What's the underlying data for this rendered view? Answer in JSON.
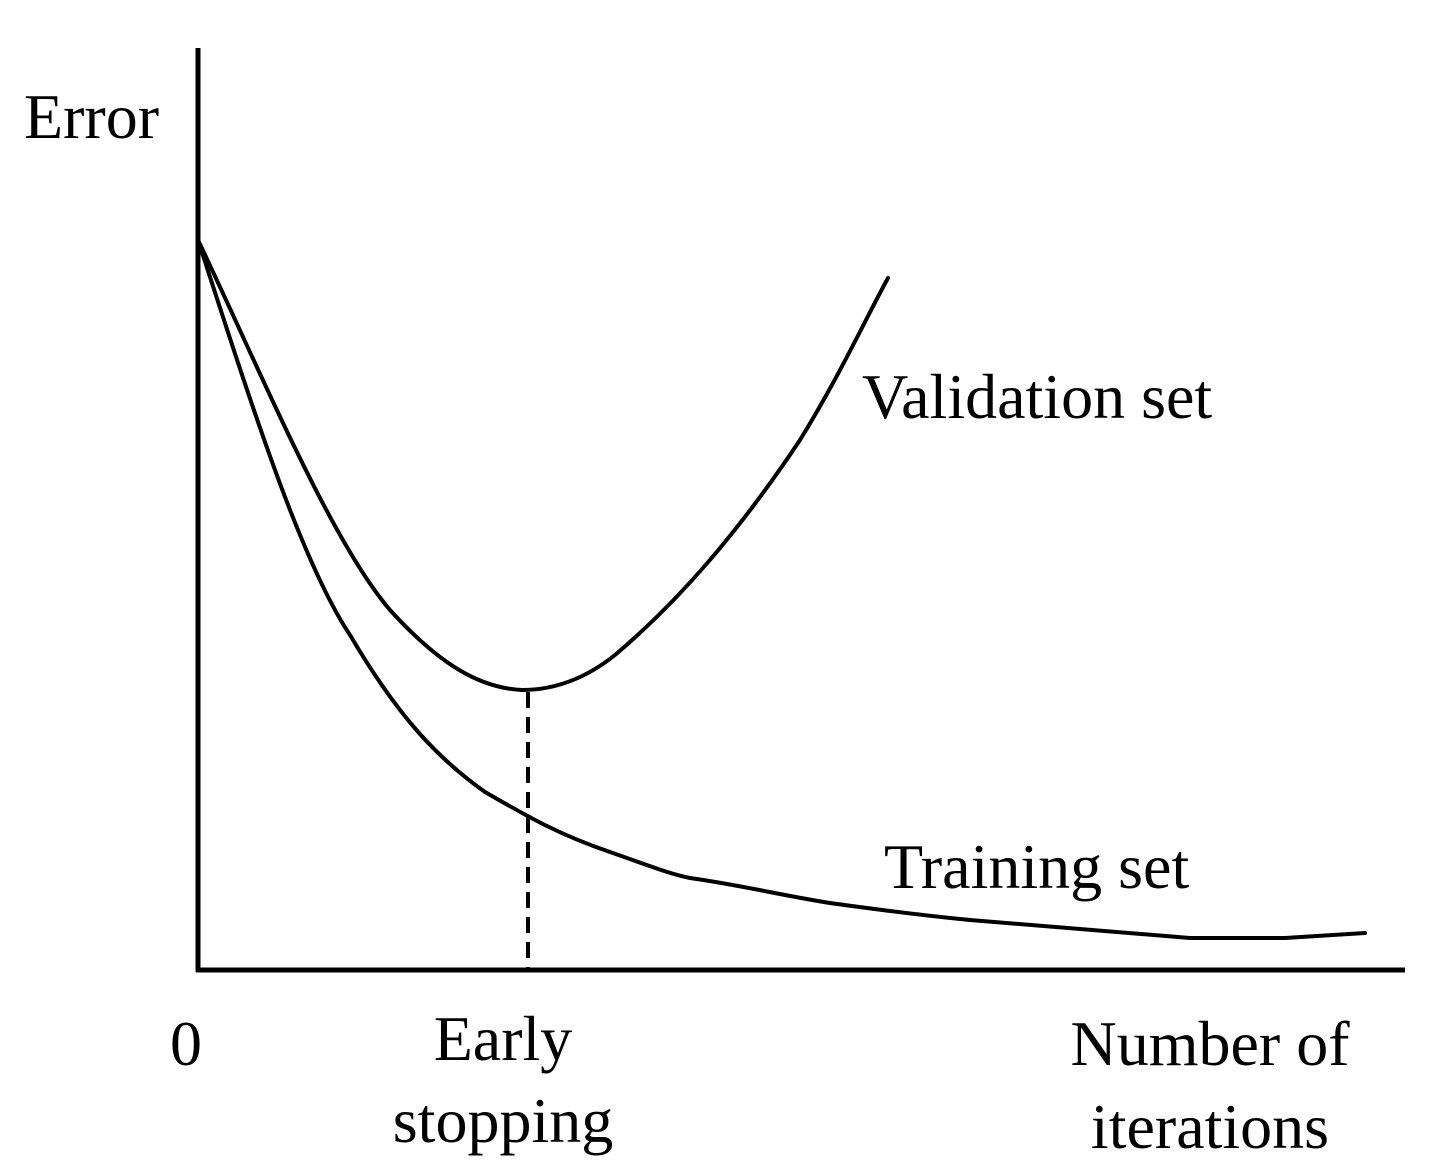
{
  "axis": {
    "y_label": "Error",
    "origin": "0",
    "x_label": [
      "Number of",
      "iterations"
    ]
  },
  "curves": {
    "validation": "Validation set",
    "training": "Training set"
  },
  "marker": {
    "label": [
      "Early",
      "stopping"
    ]
  }
}
